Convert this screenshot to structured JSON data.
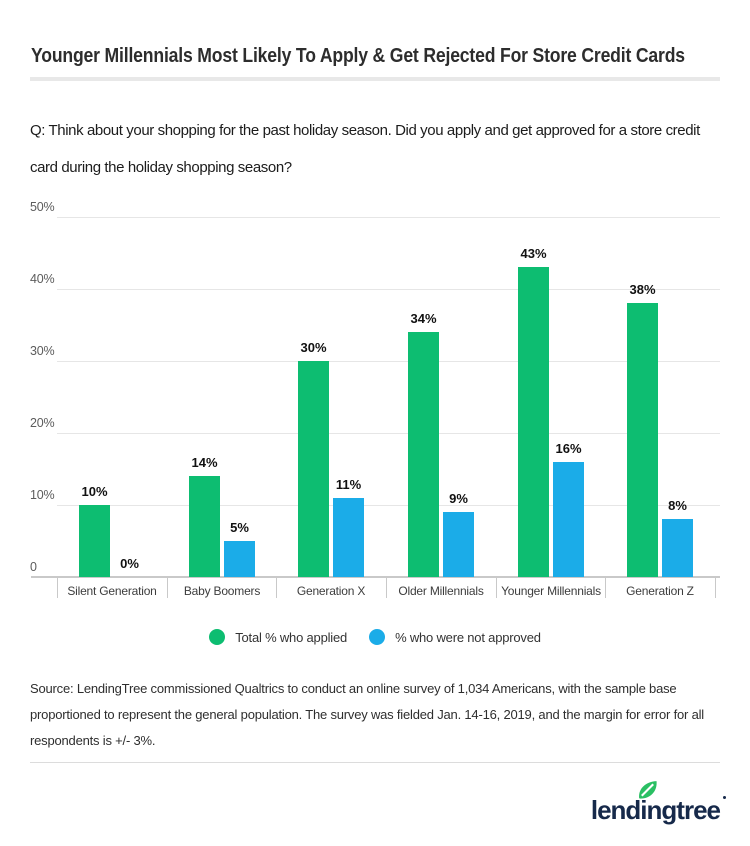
{
  "header": {
    "title": "Younger Millennials Most Likely To Apply & Get Rejected For Store Credit Cards"
  },
  "question": {
    "text": "Q: Think about your shopping for the past holiday season. Did you apply and get approved for a store credit card during the holiday shopping season?"
  },
  "chart_data": {
    "type": "bar",
    "categories": [
      "Silent Generation",
      "Baby Boomers",
      "Generation X",
      "Older Millennials",
      "Younger Millennials",
      "Generation Z"
    ],
    "series": [
      {
        "name": "Total % who applied",
        "color": "#0dbd71",
        "values": [
          10,
          14,
          30,
          34,
          43,
          38
        ]
      },
      {
        "name": "% who were not approved",
        "color": "#1bace8",
        "values": [
          0,
          5,
          11,
          9,
          16,
          8
        ]
      }
    ],
    "value_label_suffix": "%",
    "y_axis": {
      "ticks": [
        {
          "value": 50,
          "label": "50%"
        },
        {
          "value": 40,
          "label": "40%"
        },
        {
          "value": 30,
          "label": "30%"
        },
        {
          "value": 20,
          "label": "20%"
        },
        {
          "value": 10,
          "label": "10%"
        },
        {
          "value": 0,
          "label": "0"
        }
      ]
    },
    "ylim": [
      0,
      50
    ],
    "xlabel": "",
    "ylabel": "",
    "grid": true,
    "legend_position": "bottom"
  },
  "source": {
    "text": "Source: LendingTree commissioned Qualtrics to conduct an online survey of 1,034 Americans, with the sample base proportioned to represent the general population. The survey was fielded Jan. 14-16, 2019, and the margin for error for all respondents is +/- 3%."
  },
  "footer": {
    "logo": {
      "pre": "lendi",
      "post": "ngtree",
      "text_color": "#16294a",
      "leaf_color": "#2abf63"
    }
  },
  "colors": {
    "applied_green": "#0dbd71",
    "not_approved_blue": "#1bace8",
    "brand_navy": "#16294a",
    "gridline": "#e6e6e6",
    "axis_line": "#c9c9c9"
  }
}
